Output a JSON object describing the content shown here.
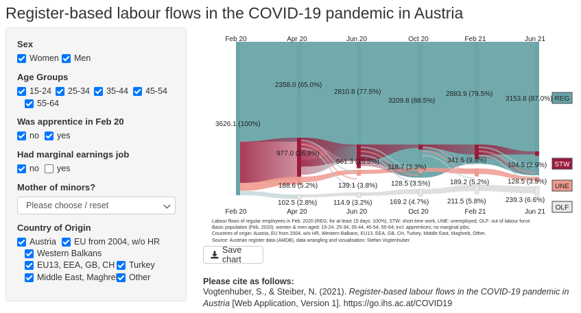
{
  "page": {
    "title": "Register-based labour flows in the COVID-19 pandemic in Austria"
  },
  "sidebar": {
    "sex": {
      "title": "Sex",
      "options": [
        {
          "label": "Women",
          "checked": true
        },
        {
          "label": "Men",
          "checked": true
        }
      ]
    },
    "age": {
      "title": "Age Groups",
      "options": [
        {
          "label": "15-24",
          "checked": true
        },
        {
          "label": "25-34",
          "checked": true
        },
        {
          "label": "35-44",
          "checked": true
        },
        {
          "label": "45-54",
          "checked": true
        },
        {
          "label": "55-64",
          "checked": true
        }
      ]
    },
    "apprentice": {
      "title": "Was apprentice in Feb 20",
      "options": [
        {
          "label": "no",
          "checked": true
        },
        {
          "label": "yes",
          "checked": true
        }
      ]
    },
    "marginal": {
      "title": "Had marginal earnings job",
      "options": [
        {
          "label": "no",
          "checked": true
        },
        {
          "label": "yes",
          "checked": false
        }
      ]
    },
    "mother": {
      "title": "Mother of minors?",
      "select_value": "Please choose / reset"
    },
    "country": {
      "title": "Country of Origin",
      "options": [
        {
          "label": "Austria",
          "checked": true
        },
        {
          "label": "EU from 2004, w/o HR",
          "checked": true
        },
        {
          "label": "Western Balkans",
          "checked": true
        },
        {
          "label": "EU13, EEA, GB, CH",
          "checked": true
        },
        {
          "label": "Turkey",
          "checked": true
        },
        {
          "label": "Middle East, Maghreb",
          "checked": true
        },
        {
          "label": "Other",
          "checked": true
        }
      ]
    }
  },
  "chart_data": {
    "type": "sankey",
    "periods": [
      "Feb 20",
      "Apr 20",
      "Jun 20",
      "Oct 20",
      "Feb 21",
      "Jun 21"
    ],
    "states": [
      "REG",
      "STW",
      "UNE",
      "OLF"
    ],
    "colors": {
      "REG": "#6aa5a8",
      "STW": "#9b1b3c",
      "UNE": "#ef9a8f",
      "OLF": "#e8e8e8"
    },
    "initial_label": "3626.1 (100%)",
    "labels": {
      "REG": [
        "2358.0 (65.0%)",
        "2810.8 (77.5%)",
        "3209.8 (88.5%)",
        "2883.9 (79.5%)",
        "3153.8 (87.0%)"
      ],
      "STW": [
        "977.0 (26.9%)",
        "561.3 (15.5%)",
        "118.7 (3.3%)",
        "341.5 (9.4%)",
        "104.5 (2.9%)"
      ],
      "UNE": [
        "188.6 (5.2%)",
        "139.1 (3.8%)",
        "128.5 (3.5%)",
        "189.2 (5.2%)",
        "128.5 (3.5%)"
      ],
      "OLF": [
        "102.5 (2.8%)",
        "114.9 (3.2%)",
        "169.2 (4.7%)",
        "211.5 (5.8%)",
        "239.3 (6.6%)"
      ]
    },
    "values": {
      "REG": [
        2358.0,
        2810.8,
        3209.8,
        2883.9,
        3153.8
      ],
      "STW": [
        977.0,
        561.3,
        118.7,
        341.5,
        104.5
      ],
      "UNE": [
        188.6,
        139.1,
        128.5,
        189.2,
        128.5
      ],
      "OLF": [
        102.5,
        114.9,
        169.2,
        211.5,
        239.3
      ]
    },
    "total": 3626.1
  },
  "notes": [
    "Labour flows of regular employees in Feb. 2020 (REG, for at least 15 days: 100%), STW: short time work, UNE: unemployed, OLF: out of labour force.",
    "Basic population (Feb. 2020): women & men aged: 15-24, 25-34, 35-44, 45-54, 55-64; incl. apprentices; no marginal jobs;",
    "Countries of origin: Austria, EU from 2004, w/o HR, Western Balkans, EU13, EEA, GB, CH, Turkey, Middle East, Maghreb, Other.",
    "Source: Austrian register data (AMDB), data wrangling and vizualisation: Stefan Vogtenhuber."
  ],
  "save_button": {
    "label": "Save chart",
    "icon": "download-icon"
  },
  "citation": {
    "heading": "Please cite as follows:",
    "authors": "Vogtenhuber, S., & Steiber, N. (2021). ",
    "title": "Register-based labour flows in the COVID-19 pandemic in Austria",
    "rest": " [Web Application, Version 1]. https://go.ihs.ac.at/COVID19"
  }
}
